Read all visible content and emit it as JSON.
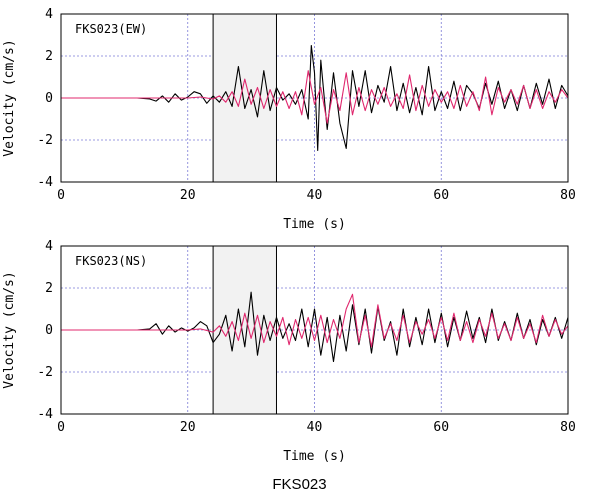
{
  "figure": {
    "caption": "FKS023"
  },
  "chart_data": [
    {
      "type": "line",
      "panel_label": "FKS023(EW)",
      "xlabel": "Time (s)",
      "ylabel": "Velocity (cm/s)",
      "xlim": [
        0,
        80
      ],
      "ylim": [
        -4,
        4
      ],
      "xticks": [
        "0",
        "20",
        "40",
        "60",
        "80"
      ],
      "yticks": [
        "4",
        "2",
        "0",
        "-2",
        "-4"
      ],
      "grid": true,
      "highlight_window": [
        24,
        34
      ],
      "series": [
        {
          "color": "#000000",
          "x": [
            0,
            12,
            14,
            15,
            16,
            17,
            18,
            19,
            20,
            21,
            22,
            23,
            24,
            25,
            26,
            27,
            28,
            29,
            30,
            31,
            32,
            33,
            34,
            35,
            36,
            37,
            38,
            39,
            39.5,
            40,
            40.5,
            41,
            42,
            43,
            44,
            45,
            46,
            47,
            48,
            49,
            50,
            51,
            52,
            53,
            54,
            55,
            56,
            57,
            58,
            59,
            60,
            61,
            62,
            63,
            64,
            65,
            66,
            67,
            68,
            69,
            70,
            71,
            72,
            73,
            74,
            75,
            76,
            77,
            78,
            79,
            80
          ],
          "y": [
            0,
            0,
            -0.05,
            -0.15,
            0.1,
            -0.2,
            0.2,
            -0.1,
            0.05,
            0.3,
            0.2,
            -0.25,
            0.1,
            -0.2,
            0.3,
            -0.4,
            1.5,
            -0.5,
            0.4,
            -0.9,
            1.3,
            -0.6,
            0.5,
            -0.1,
            0.2,
            -0.3,
            0.4,
            -1.0,
            2.5,
            1.2,
            -2.5,
            1.8,
            -1.5,
            1.2,
            -1.2,
            -2.4,
            1.3,
            -0.4,
            1.3,
            -0.7,
            0.6,
            -0.2,
            1.5,
            -0.6,
            0.7,
            -0.7,
            0.5,
            -0.8,
            1.5,
            -0.6,
            0.3,
            -0.5,
            0.8,
            -0.6,
            0.6,
            0.2,
            -0.5,
            0.7,
            -0.3,
            0.8,
            -0.5,
            0.4,
            -0.6,
            0.6,
            -0.5,
            0.7,
            -0.3,
            0.9,
            -0.5,
            0.6,
            0.1
          ]
        },
        {
          "color": "#e0286e",
          "x": [
            0,
            15,
            20,
            22,
            24,
            25,
            26,
            27,
            28,
            29,
            30,
            31,
            32,
            33,
            34,
            35,
            36,
            37,
            38,
            39,
            40,
            41,
            42,
            43,
            44,
            45,
            46,
            47,
            48,
            49,
            50,
            51,
            52,
            53,
            54,
            55,
            56,
            57,
            58,
            59,
            60,
            61,
            62,
            63,
            64,
            65,
            66,
            67,
            68,
            69,
            70,
            71,
            72,
            73,
            74,
            75,
            76,
            77,
            78,
            79,
            80
          ],
          "y": [
            0,
            0,
            0,
            0.05,
            -0.05,
            0.1,
            -0.2,
            0.3,
            -0.4,
            0.9,
            -0.3,
            0.5,
            -0.5,
            0.4,
            -0.4,
            0.3,
            -0.5,
            0.3,
            -0.8,
            1.3,
            -0.3,
            0.5,
            -1.2,
            0.4,
            -0.6,
            1.2,
            -0.8,
            0.5,
            -0.6,
            0.4,
            -0.3,
            0.5,
            -0.4,
            0.2,
            -0.5,
            1.1,
            -0.6,
            0.6,
            -0.4,
            0.4,
            -0.2,
            0.3,
            -0.5,
            0.6,
            -0.4,
            0.3,
            -0.6,
            1.0,
            -0.8,
            0.5,
            -0.2,
            0.4,
            -0.3,
            0.6,
            -0.5,
            0.4,
            -0.5,
            0.3,
            -0.2,
            0.4,
            0
          ]
        }
      ]
    },
    {
      "type": "line",
      "panel_label": "FKS023(NS)",
      "xlabel": "Time (s)",
      "ylabel": "Velocity (cm/s)",
      "xlim": [
        0,
        80
      ],
      "ylim": [
        -4,
        4
      ],
      "xticks": [
        "0",
        "20",
        "40",
        "60",
        "80"
      ],
      "yticks": [
        "4",
        "2",
        "0",
        "-2",
        "-4"
      ],
      "grid": true,
      "highlight_window": [
        24,
        34
      ],
      "series": [
        {
          "color": "#000000",
          "x": [
            0,
            12,
            14,
            15,
            16,
            17,
            18,
            19,
            20,
            21,
            22,
            23,
            24,
            25,
            26,
            27,
            28,
            29,
            30,
            31,
            32,
            33,
            34,
            35,
            36,
            37,
            38,
            39,
            40,
            41,
            42,
            43,
            44,
            45,
            46,
            47,
            48,
            49,
            50,
            51,
            52,
            53,
            54,
            55,
            56,
            57,
            58,
            59,
            60,
            61,
            62,
            63,
            64,
            65,
            66,
            67,
            68,
            69,
            70,
            71,
            72,
            73,
            74,
            75,
            76,
            77,
            78,
            79,
            80
          ],
          "y": [
            0,
            0,
            0.05,
            0.3,
            -0.2,
            0.2,
            -0.1,
            0.1,
            -0.05,
            0.1,
            0.4,
            0.2,
            -0.6,
            -0.2,
            0.7,
            -1.0,
            1.0,
            -0.8,
            1.8,
            -1.2,
            0.7,
            -0.5,
            0.6,
            -0.4,
            0.3,
            -0.5,
            1.0,
            -0.8,
            1.0,
            -1.2,
            0.6,
            -1.5,
            0.7,
            -1.0,
            1.2,
            -0.7,
            1.0,
            -1.1,
            1.1,
            -0.5,
            0.4,
            -1.2,
            1.0,
            -0.8,
            0.6,
            -0.7,
            1.0,
            -0.6,
            0.8,
            -0.8,
            0.6,
            -0.5,
            0.9,
            -0.4,
            0.6,
            -0.6,
            1.0,
            -0.5,
            0.4,
            -0.5,
            0.8,
            -0.4,
            0.5,
            -0.7,
            0.5,
            -0.3,
            0.6,
            -0.4,
            0.6
          ]
        },
        {
          "color": "#e0286e",
          "x": [
            0,
            15,
            20,
            22,
            24,
            25,
            26,
            27,
            28,
            29,
            30,
            31,
            32,
            33,
            34,
            35,
            36,
            37,
            38,
            39,
            40,
            41,
            42,
            43,
            44,
            45,
            46,
            47,
            48,
            49,
            50,
            51,
            52,
            53,
            54,
            55,
            56,
            57,
            58,
            59,
            60,
            61,
            62,
            63,
            64,
            65,
            66,
            67,
            68,
            69,
            70,
            71,
            72,
            73,
            74,
            75,
            76,
            77,
            78,
            79,
            80
          ],
          "y": [
            0,
            0,
            0,
            0.05,
            -0.1,
            0.2,
            -0.3,
            0.4,
            -0.5,
            0.8,
            -0.4,
            0.7,
            -0.6,
            0.4,
            -0.3,
            0.6,
            -0.7,
            0.5,
            -0.4,
            0.6,
            -0.5,
            0.7,
            -0.6,
            0.5,
            -0.4,
            1.0,
            1.7,
            -0.6,
            0.7,
            -0.8,
            1.2,
            -0.4,
            0.3,
            -0.5,
            0.7,
            -0.6,
            0.4,
            -0.2,
            0.5,
            -0.4,
            0.6,
            -0.5,
            0.8,
            -0.5,
            0.4,
            -0.6,
            0.5,
            -0.3,
            0.8,
            -0.4,
            0.3,
            -0.5,
            0.6,
            -0.4,
            0.3,
            -0.6,
            0.7,
            -0.3,
            0.5,
            -0.2,
            0.2
          ]
        }
      ]
    }
  ]
}
